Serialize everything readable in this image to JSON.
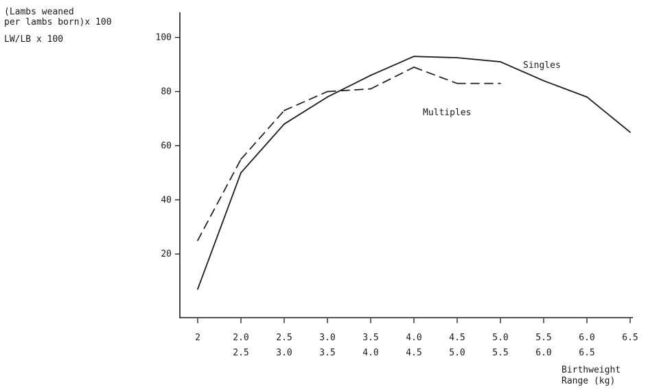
{
  "chart_data": {
    "type": "line",
    "ylabel_lines": [
      "(Lambs weaned",
      "per lambs born)x 100",
      "LW/LB x 100"
    ],
    "xlabel_lines": [
      "Birthweight",
      "Range (kg)"
    ],
    "categories": [
      [
        "2",
        ""
      ],
      [
        "2.0",
        "2.5"
      ],
      [
        "2.5",
        "3.0"
      ],
      [
        "3.0",
        "3.5"
      ],
      [
        "3.5",
        "4.0"
      ],
      [
        "4.0",
        "4.5"
      ],
      [
        "4.5",
        "5.0"
      ],
      [
        "5.0",
        "5.5"
      ],
      [
        "5.5",
        "6.0"
      ],
      [
        "6.0",
        "6.5"
      ],
      [
        "6.5",
        ""
      ]
    ],
    "yticks": [
      20,
      40,
      60,
      80,
      100
    ],
    "ylim": [
      -2,
      108
    ],
    "grid": false,
    "series": [
      {
        "name": "Singles",
        "style": "solid",
        "color": "#1a1a1a",
        "values": [
          7,
          50,
          68,
          78,
          86,
          93,
          92.5,
          91,
          84,
          78,
          65
        ]
      },
      {
        "name": "Multiples",
        "style": "dashed",
        "color": "#1a1a1a",
        "values": [
          25,
          55,
          73,
          80,
          81,
          89,
          83,
          83,
          null,
          null,
          null
        ]
      }
    ]
  }
}
